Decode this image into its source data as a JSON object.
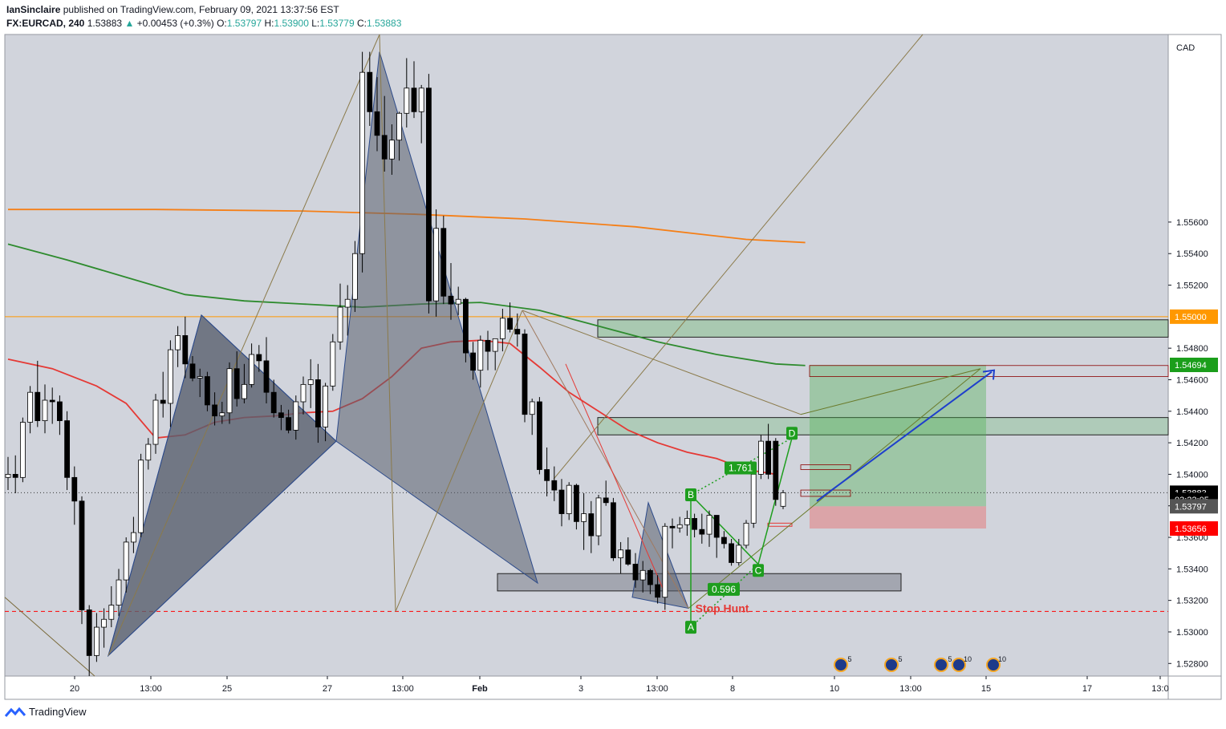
{
  "header": {
    "author": "IanSinclaire",
    "published_text": "published on TradingView.com, February 09, 2021 13:37:56 EST",
    "symbol": "FX:EURCAD, 240",
    "last": "1.53883",
    "change_arrow": "▲",
    "change": "+0.00453 (+0.3%)",
    "o_label": "O:",
    "o": "1.53797",
    "h_label": "H:",
    "h": "1.53900",
    "l_label": "L:",
    "l": "1.53779",
    "c_label": "C:",
    "c": "1.53883"
  },
  "footer": {
    "brand": "TradingView",
    "logo_icon": "tradingview-logo-icon"
  },
  "colors": {
    "background": "#d1d4dc",
    "up": "#ffffff",
    "down": "#000000",
    "ma_orange": "#f57f17",
    "ma_green": "#2e8b2e",
    "ma_red": "#e53935",
    "zone_green": "#4caf50",
    "zone_red": "#e57373",
    "pattern_fill": "#5a5f6e",
    "axis_orange": "#ff9800",
    "axis_green": "#1b9e1b",
    "axis_red": "#ff0000",
    "arrow_blue": "#1e3fcc"
  },
  "chart_data": {
    "type": "candlestick",
    "symbol": "FX:EURCAD",
    "timeframe": "240",
    "ylim": [
      1.5272,
      1.5679
    ],
    "y_ticks": [
      "1.52800",
      "1.53000",
      "1.53200",
      "1.53400",
      "1.53600",
      "1.53800",
      "1.54000",
      "1.54200",
      "1.54400",
      "1.54600",
      "1.54800",
      "1.55200",
      "1.55400",
      "1.55600"
    ],
    "y_unit": "CAD",
    "x_ticks": [
      "20",
      "13:00",
      "25",
      "27",
      "13:00",
      "Feb",
      "3",
      "13:00",
      "8",
      "10",
      "13:00",
      "15",
      "17",
      "13:0"
    ],
    "price_tags": [
      {
        "label": "1.55000",
        "value": 1.55,
        "color": "#ff9800"
      },
      {
        "label": "1.54694",
        "value": 1.54694,
        "color": "#1b9e1b"
      },
      {
        "label": "1.53883",
        "value": 1.53883,
        "color": "#000000"
      },
      {
        "label": "03:22:05",
        "value": 1.53838,
        "color": "#000000"
      },
      {
        "label": "1.53797",
        "value": 1.53797,
        "color": "#555555"
      },
      {
        "label": "1.53656",
        "value": 1.53656,
        "color": "#ff0000"
      }
    ],
    "candles": [
      {
        "o": 1.5398,
        "h": 1.5411,
        "l": 1.539,
        "c": 1.54
      },
      {
        "o": 1.54,
        "h": 1.5412,
        "l": 1.5388,
        "c": 1.5398
      },
      {
        "o": 1.5398,
        "h": 1.5436,
        "l": 1.5395,
        "c": 1.5433
      },
      {
        "o": 1.5433,
        "h": 1.5456,
        "l": 1.5426,
        "c": 1.5452
      },
      {
        "o": 1.5452,
        "h": 1.5472,
        "l": 1.543,
        "c": 1.5434
      },
      {
        "o": 1.5434,
        "h": 1.5457,
        "l": 1.5426,
        "c": 1.5447
      },
      {
        "o": 1.5447,
        "h": 1.5455,
        "l": 1.5432,
        "c": 1.5446
      },
      {
        "o": 1.5446,
        "h": 1.545,
        "l": 1.5425,
        "c": 1.5434
      },
      {
        "o": 1.5434,
        "h": 1.544,
        "l": 1.539,
        "c": 1.5398
      },
      {
        "o": 1.5398,
        "h": 1.5405,
        "l": 1.5368,
        "c": 1.5383
      },
      {
        "o": 1.5383,
        "h": 1.5386,
        "l": 1.5305,
        "c": 1.5314
      },
      {
        "o": 1.5314,
        "h": 1.5317,
        "l": 1.5272,
        "c": 1.5285
      },
      {
        "o": 1.5285,
        "h": 1.5312,
        "l": 1.5281,
        "c": 1.5303
      },
      {
        "o": 1.5303,
        "h": 1.5315,
        "l": 1.529,
        "c": 1.5308
      },
      {
        "o": 1.5308,
        "h": 1.5329,
        "l": 1.5303,
        "c": 1.5317
      },
      {
        "o": 1.5317,
        "h": 1.534,
        "l": 1.531,
        "c": 1.5333
      },
      {
        "o": 1.5333,
        "h": 1.536,
        "l": 1.5325,
        "c": 1.5357
      },
      {
        "o": 1.5357,
        "h": 1.5373,
        "l": 1.535,
        "c": 1.5363
      },
      {
        "o": 1.5363,
        "h": 1.5413,
        "l": 1.536,
        "c": 1.5409
      },
      {
        "o": 1.5409,
        "h": 1.5423,
        "l": 1.5403,
        "c": 1.5419
      },
      {
        "o": 1.5419,
        "h": 1.5451,
        "l": 1.5413,
        "c": 1.5447
      },
      {
        "o": 1.5447,
        "h": 1.5465,
        "l": 1.5436,
        "c": 1.5445
      },
      {
        "o": 1.5445,
        "h": 1.5485,
        "l": 1.543,
        "c": 1.5479
      },
      {
        "o": 1.5479,
        "h": 1.5494,
        "l": 1.5468,
        "c": 1.5488
      },
      {
        "o": 1.5488,
        "h": 1.55,
        "l": 1.5461,
        "c": 1.547
      },
      {
        "o": 1.547,
        "h": 1.5475,
        "l": 1.5459,
        "c": 1.5461
      },
      {
        "o": 1.5461,
        "h": 1.5467,
        "l": 1.5449,
        "c": 1.5462
      },
      {
        "o": 1.5462,
        "h": 1.5465,
        "l": 1.544,
        "c": 1.5444
      },
      {
        "o": 1.5444,
        "h": 1.5452,
        "l": 1.5431,
        "c": 1.5437
      },
      {
        "o": 1.5437,
        "h": 1.5446,
        "l": 1.5432,
        "c": 1.5439
      },
      {
        "o": 1.5439,
        "h": 1.5471,
        "l": 1.5432,
        "c": 1.5467
      },
      {
        "o": 1.5467,
        "h": 1.5478,
        "l": 1.5443,
        "c": 1.5448
      },
      {
        "o": 1.5448,
        "h": 1.547,
        "l": 1.5445,
        "c": 1.5457
      },
      {
        "o": 1.5457,
        "h": 1.5483,
        "l": 1.5455,
        "c": 1.5476
      },
      {
        "o": 1.5476,
        "h": 1.5482,
        "l": 1.5465,
        "c": 1.5472
      },
      {
        "o": 1.5472,
        "h": 1.5487,
        "l": 1.5445,
        "c": 1.5452
      },
      {
        "o": 1.5452,
        "h": 1.546,
        "l": 1.5436,
        "c": 1.5439
      },
      {
        "o": 1.5439,
        "h": 1.5444,
        "l": 1.5428,
        "c": 1.5436
      },
      {
        "o": 1.5436,
        "h": 1.5441,
        "l": 1.5426,
        "c": 1.5428
      },
      {
        "o": 1.5428,
        "h": 1.545,
        "l": 1.5422,
        "c": 1.5446
      },
      {
        "o": 1.5446,
        "h": 1.5462,
        "l": 1.5438,
        "c": 1.5457
      },
      {
        "o": 1.5457,
        "h": 1.5473,
        "l": 1.5442,
        "c": 1.546
      },
      {
        "o": 1.546,
        "h": 1.547,
        "l": 1.542,
        "c": 1.543
      },
      {
        "o": 1.543,
        "h": 1.5458,
        "l": 1.5421,
        "c": 1.5456
      },
      {
        "o": 1.5456,
        "h": 1.5489,
        "l": 1.5453,
        "c": 1.5484
      },
      {
        "o": 1.5484,
        "h": 1.5521,
        "l": 1.5479,
        "c": 1.5506
      },
      {
        "o": 1.5506,
        "h": 1.552,
        "l": 1.5488,
        "c": 1.5511
      },
      {
        "o": 1.5511,
        "h": 1.5548,
        "l": 1.5503,
        "c": 1.554
      },
      {
        "o": 1.554,
        "h": 1.5668,
        "l": 1.5528,
        "c": 1.5655
      },
      {
        "o": 1.5655,
        "h": 1.5668,
        "l": 1.5621,
        "c": 1.563
      },
      {
        "o": 1.563,
        "h": 1.5652,
        "l": 1.5605,
        "c": 1.5615
      },
      {
        "o": 1.5615,
        "h": 1.564,
        "l": 1.5592,
        "c": 1.56
      },
      {
        "o": 1.56,
        "h": 1.5622,
        "l": 1.559,
        "c": 1.5612
      },
      {
        "o": 1.5612,
        "h": 1.563,
        "l": 1.5599,
        "c": 1.5629
      },
      {
        "o": 1.5629,
        "h": 1.5664,
        "l": 1.562,
        "c": 1.5645
      },
      {
        "o": 1.5645,
        "h": 1.5662,
        "l": 1.5626,
        "c": 1.563
      },
      {
        "o": 1.563,
        "h": 1.5647,
        "l": 1.561,
        "c": 1.5645
      },
      {
        "o": 1.5645,
        "h": 1.5654,
        "l": 1.5502,
        "c": 1.551
      },
      {
        "o": 1.551,
        "h": 1.5568,
        "l": 1.55,
        "c": 1.5556
      },
      {
        "o": 1.5556,
        "h": 1.5564,
        "l": 1.5508,
        "c": 1.5513
      },
      {
        "o": 1.5513,
        "h": 1.5534,
        "l": 1.5498,
        "c": 1.5508
      },
      {
        "o": 1.5508,
        "h": 1.5519,
        "l": 1.5501,
        "c": 1.5511
      },
      {
        "o": 1.5511,
        "h": 1.5512,
        "l": 1.5471,
        "c": 1.5477
      },
      {
        "o": 1.5477,
        "h": 1.5484,
        "l": 1.546,
        "c": 1.5466
      },
      {
        "o": 1.5466,
        "h": 1.5488,
        "l": 1.5455,
        "c": 1.5485
      },
      {
        "o": 1.5485,
        "h": 1.5491,
        "l": 1.5466,
        "c": 1.5478
      },
      {
        "o": 1.5478,
        "h": 1.5486,
        "l": 1.5466,
        "c": 1.5486
      },
      {
        "o": 1.5486,
        "h": 1.5505,
        "l": 1.5478,
        "c": 1.5499
      },
      {
        "o": 1.5499,
        "h": 1.5509,
        "l": 1.549,
        "c": 1.5492
      },
      {
        "o": 1.5492,
        "h": 1.5502,
        "l": 1.5481,
        "c": 1.5489
      },
      {
        "o": 1.5489,
        "h": 1.5492,
        "l": 1.5433,
        "c": 1.5438
      },
      {
        "o": 1.5438,
        "h": 1.5448,
        "l": 1.5425,
        "c": 1.5446
      },
      {
        "o": 1.5446,
        "h": 1.5449,
        "l": 1.54,
        "c": 1.5403
      },
      {
        "o": 1.5403,
        "h": 1.5417,
        "l": 1.5386,
        "c": 1.5396
      },
      {
        "o": 1.5396,
        "h": 1.5405,
        "l": 1.5383,
        "c": 1.539
      },
      {
        "o": 1.539,
        "h": 1.5397,
        "l": 1.5367,
        "c": 1.5375
      },
      {
        "o": 1.5375,
        "h": 1.5395,
        "l": 1.5371,
        "c": 1.5393
      },
      {
        "o": 1.5393,
        "h": 1.5394,
        "l": 1.5365,
        "c": 1.537
      },
      {
        "o": 1.537,
        "h": 1.5388,
        "l": 1.5352,
        "c": 1.5375
      },
      {
        "o": 1.5375,
        "h": 1.5383,
        "l": 1.535,
        "c": 1.5361
      },
      {
        "o": 1.5361,
        "h": 1.5387,
        "l": 1.5355,
        "c": 1.5385
      },
      {
        "o": 1.5385,
        "h": 1.5396,
        "l": 1.538,
        "c": 1.5382
      },
      {
        "o": 1.5382,
        "h": 1.5385,
        "l": 1.5345,
        "c": 1.5347
      },
      {
        "o": 1.5347,
        "h": 1.5357,
        "l": 1.5337,
        "c": 1.5352
      },
      {
        "o": 1.5352,
        "h": 1.536,
        "l": 1.5342,
        "c": 1.5343
      },
      {
        "o": 1.5343,
        "h": 1.535,
        "l": 1.5328,
        "c": 1.5333
      },
      {
        "o": 1.5333,
        "h": 1.5345,
        "l": 1.5325,
        "c": 1.5339
      },
      {
        "o": 1.5339,
        "h": 1.534,
        "l": 1.5324,
        "c": 1.533
      },
      {
        "o": 1.533,
        "h": 1.5336,
        "l": 1.5318,
        "c": 1.5322
      },
      {
        "o": 1.5322,
        "h": 1.5369,
        "l": 1.5314,
        "c": 1.5367
      },
      {
        "o": 1.5367,
        "h": 1.5372,
        "l": 1.5353,
        "c": 1.5366
      },
      {
        "o": 1.5366,
        "h": 1.5373,
        "l": 1.5363,
        "c": 1.5368
      },
      {
        "o": 1.5368,
        "h": 1.5377,
        "l": 1.5361,
        "c": 1.5372
      },
      {
        "o": 1.5372,
        "h": 1.5375,
        "l": 1.536,
        "c": 1.5365
      },
      {
        "o": 1.5365,
        "h": 1.5375,
        "l": 1.5356,
        "c": 1.5362
      },
      {
        "o": 1.5362,
        "h": 1.5377,
        "l": 1.5354,
        "c": 1.5374
      },
      {
        "o": 1.5374,
        "h": 1.5374,
        "l": 1.5347,
        "c": 1.536
      },
      {
        "o": 1.536,
        "h": 1.5364,
        "l": 1.5353,
        "c": 1.5356
      },
      {
        "o": 1.5356,
        "h": 1.5359,
        "l": 1.5342,
        "c": 1.5344
      },
      {
        "o": 1.5344,
        "h": 1.5359,
        "l": 1.5342,
        "c": 1.5355
      },
      {
        "o": 1.5355,
        "h": 1.5371,
        "l": 1.5353,
        "c": 1.5369
      },
      {
        "o": 1.5369,
        "h": 1.5404,
        "l": 1.5366,
        "c": 1.54
      },
      {
        "o": 1.54,
        "h": 1.5425,
        "l": 1.5397,
        "c": 1.5421
      },
      {
        "o": 1.5421,
        "h": 1.5432,
        "l": 1.5397,
        "c": 1.54
      },
      {
        "o": 1.5421,
        "h": 1.5423,
        "l": 1.538,
        "c": 1.5384
      },
      {
        "o": 1.53797,
        "h": 1.539,
        "l": 1.53779,
        "c": 1.53883
      }
    ],
    "moving_averages": [
      {
        "color": "#f57f17",
        "points": [
          [
            0,
            1.5568
          ],
          [
            20,
            1.5568
          ],
          [
            40,
            1.5567
          ],
          [
            55,
            1.5565
          ],
          [
            70,
            1.5562
          ],
          [
            85,
            1.5557
          ],
          [
            100,
            1.5549
          ],
          [
            108,
            1.5547
          ]
        ]
      },
      {
        "color": "#2e8b2e",
        "points": [
          [
            0,
            1.5546
          ],
          [
            8,
            1.5536
          ],
          [
            16,
            1.5525
          ],
          [
            24,
            1.5514
          ],
          [
            32,
            1.551
          ],
          [
            40,
            1.5508
          ],
          [
            48,
            1.5506
          ],
          [
            56,
            1.5508
          ],
          [
            64,
            1.5509
          ],
          [
            72,
            1.5504
          ],
          [
            80,
            1.5494
          ],
          [
            88,
            1.5484
          ],
          [
            96,
            1.5476
          ],
          [
            104,
            1.547
          ],
          [
            108,
            1.5469
          ]
        ]
      },
      {
        "color": "#e53935",
        "points": [
          [
            0,
            1.5473
          ],
          [
            6,
            1.5467
          ],
          [
            12,
            1.5456
          ],
          [
            16,
            1.5445
          ],
          [
            20,
            1.5423
          ],
          [
            24,
            1.5425
          ],
          [
            28,
            1.5433
          ],
          [
            32,
            1.5436
          ],
          [
            36,
            1.5437
          ],
          [
            40,
            1.5439
          ],
          [
            44,
            1.544
          ],
          [
            48,
            1.5448
          ],
          [
            52,
            1.5462
          ],
          [
            56,
            1.548
          ],
          [
            60,
            1.5484
          ],
          [
            64,
            1.5485
          ],
          [
            68,
            1.5483
          ],
          [
            72,
            1.5468
          ],
          [
            76,
            1.5452
          ],
          [
            80,
            1.544
          ],
          [
            84,
            1.5428
          ],
          [
            88,
            1.542
          ],
          [
            92,
            1.5414
          ],
          [
            96,
            1.541
          ],
          [
            100,
            1.5403
          ],
          [
            104,
            1.54
          ]
        ]
      }
    ],
    "annotations": [
      {
        "label": "B",
        "value": 1.5387,
        "color": "#1e9e1e"
      },
      {
        "label": "C",
        "value": 1.5339,
        "color": "#1e9e1e"
      },
      {
        "label": "D",
        "value": 1.5426,
        "color": "#1e9e1e"
      },
      {
        "label": "A",
        "value": 1.5303,
        "color": "#1e9e1e"
      },
      {
        "label": "1.761",
        "value": 1.5404,
        "color": "#1e9e1e"
      },
      {
        "label": "0.596",
        "value": 1.5327,
        "color": "#1e9e1e"
      },
      {
        "label": "Stop Hunt",
        "value": 1.5315,
        "color": "#e53935"
      }
    ],
    "event_badges": [
      {
        "count": "5"
      },
      {
        "count": "5"
      },
      {
        "count": "5"
      },
      {
        "count": "10"
      },
      {
        "count": "10"
      }
    ]
  }
}
